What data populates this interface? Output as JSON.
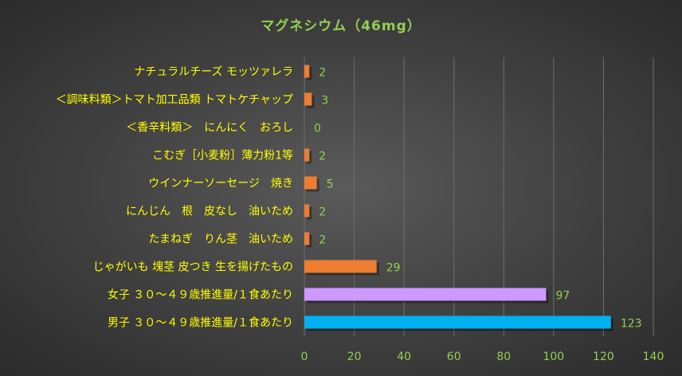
{
  "chart_data": {
    "type": "bar",
    "orientation": "horizontal",
    "title": "マグネシウム（46mg）",
    "categories": [
      "ナチュラルチーズ モッツァレラ",
      "＜調味料類＞トマト加工品類 トマトケチャップ",
      "＜香辛料類＞　にんにく　おろし",
      "こむぎ［小麦粉］薄力粉1等",
      "ウインナーソーセージ　焼き",
      "にんじん　根　皮なし　油いため",
      "たまねぎ　りん茎　油いため",
      "じゃがいも 塊茎 皮つき 生を揚げたもの",
      "女子 ３０～４９歳推進量/１食あたり",
      "男子 ３０～４９歳推進量/１食あたり"
    ],
    "values": [
      2,
      3,
      0,
      2,
      5,
      2,
      2,
      29,
      97,
      123
    ],
    "bar_colors": [
      "#ed7d31",
      "#ed7d31",
      "#ed7d31",
      "#ed7d31",
      "#ed7d31",
      "#ed7d31",
      "#ed7d31",
      "#ed7d31",
      "#cc99ff",
      "#00b0f0"
    ],
    "xlim": [
      0,
      140
    ],
    "xticks": [
      0,
      20,
      40,
      60,
      80,
      100,
      120,
      140
    ],
    "grid": true,
    "legend": "none",
    "colors": {
      "title": "#92d050",
      "category_label": "#ffff00",
      "tick_label": "#92d050",
      "data_label": "#92d050"
    }
  }
}
